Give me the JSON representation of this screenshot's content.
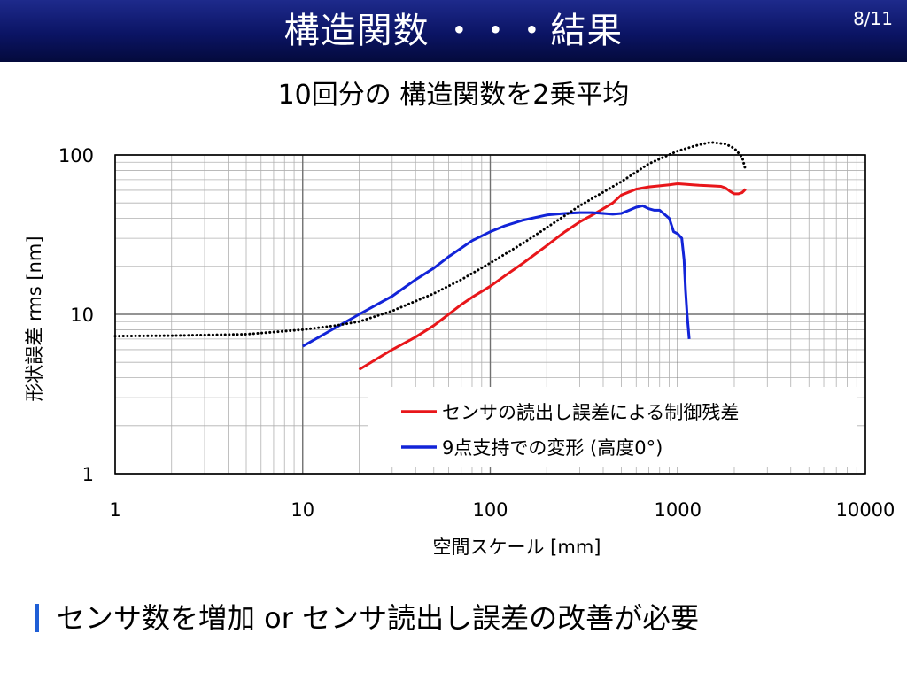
{
  "header": {
    "title": "構造関数 ・・・結果",
    "page": "8/11"
  },
  "subtitle": "10回分の 構造関数を2乗平均",
  "bullet": {
    "text": "センサ数を増加 or センサ読出し誤差の改善が必要",
    "color": "#1f5fd6"
  },
  "chart_data": {
    "type": "line",
    "xlabel": "空間スケール [mm]",
    "ylabel": "形状誤差 rms [nm]",
    "xscale": "log",
    "yscale": "log",
    "xlim": [
      1,
      10000
    ],
    "ylim": [
      1,
      100
    ],
    "xticks": [
      "1",
      "10",
      "100",
      "1000",
      "10000"
    ],
    "yticks": [
      "1",
      "10",
      "100"
    ],
    "grid": true,
    "legend_position": "bottom-right",
    "series": [
      {
        "name": "センサの読出し誤差による制御残差",
        "color": "#e8161a",
        "style": "solid",
        "x": [
          20,
          30,
          40,
          50,
          60,
          70,
          80,
          100,
          120,
          150,
          200,
          250,
          300,
          350,
          400,
          450,
          500,
          600,
          700,
          800,
          900,
          1000,
          1100,
          1200,
          1300,
          1500,
          1700,
          1800,
          1900,
          2000,
          2100,
          2200,
          2300
        ],
        "y": [
          4.5,
          6,
          7.2,
          8.5,
          10,
          11.5,
          12.8,
          15,
          17.5,
          21,
          27,
          33,
          38,
          42,
          46,
          50,
          56,
          61,
          63,
          64,
          65,
          66,
          65.5,
          65,
          64.5,
          64,
          63.5,
          62,
          59,
          57,
          57,
          58,
          61
        ]
      },
      {
        "name": "9点支持での変形 (高度0°)",
        "color": "#1224d8",
        "style": "solid",
        "x": [
          10,
          20,
          30,
          40,
          50,
          60,
          70,
          80,
          100,
          120,
          150,
          200,
          250,
          300,
          350,
          400,
          450,
          500,
          550,
          600,
          650,
          700,
          750,
          800,
          900,
          950,
          1000,
          1050,
          1080,
          1100,
          1120,
          1150
        ],
        "y": [
          6.3,
          10,
          13,
          16.5,
          19.5,
          23,
          26,
          29,
          33,
          36,
          39,
          42,
          43,
          43.5,
          43.5,
          43,
          42.5,
          43,
          45,
          47,
          48,
          46,
          45,
          45,
          40,
          33,
          32,
          30,
          22,
          14,
          10,
          7
        ]
      },
      {
        "name": "",
        "color": "#000000",
        "style": "dotted",
        "x": [
          1,
          2,
          5,
          10,
          15,
          20,
          30,
          50,
          70,
          100,
          150,
          200,
          300,
          500,
          700,
          1000,
          1300,
          1500,
          1800,
          2000,
          2200,
          2300
        ],
        "y": [
          7.3,
          7.35,
          7.5,
          8,
          8.5,
          9,
          10.5,
          13.5,
          16.5,
          21,
          28,
          35,
          48,
          68,
          88,
          106,
          116,
          120,
          117,
          110,
          97,
          80
        ]
      }
    ]
  }
}
